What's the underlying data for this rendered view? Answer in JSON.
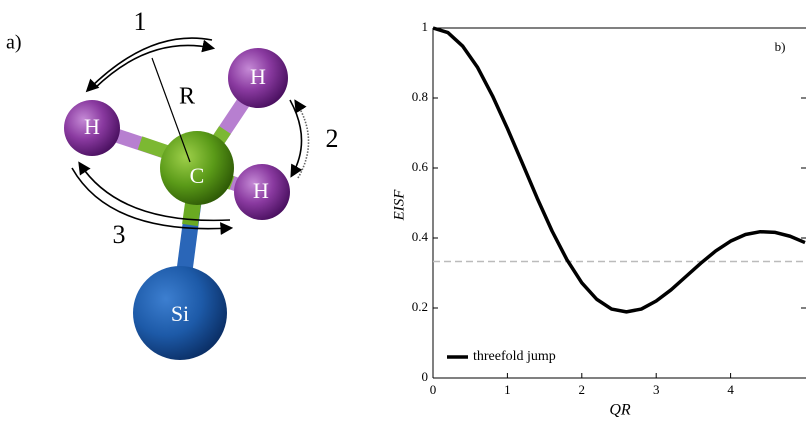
{
  "panel_a": {
    "label": "a)",
    "jumps": [
      "1",
      "2",
      "3"
    ],
    "radius_label": "R",
    "atoms": {
      "h_left": "H",
      "h_top": "H",
      "h_right": "H",
      "carbon": "C",
      "silicon": "Si"
    }
  },
  "chart_data": {
    "type": "line",
    "panel_label": "b)",
    "x_label": "QR",
    "y_label": "EISF",
    "x": [
      0,
      0.2,
      0.4,
      0.6,
      0.8,
      1.0,
      1.2,
      1.4,
      1.6,
      1.8,
      2.0,
      2.2,
      2.4,
      2.6,
      2.8,
      3.0,
      3.2,
      3.4,
      3.6,
      3.8,
      4.0,
      4.2,
      4.4,
      4.6,
      4.8,
      5.0
    ],
    "series": [
      {
        "name": "threefold jump",
        "color": "#000000",
        "values": [
          1,
          0.987,
          0.948,
          0.887,
          0.806,
          0.713,
          0.614,
          0.514,
          0.42,
          0.338,
          0.272,
          0.225,
          0.197,
          0.189,
          0.197,
          0.22,
          0.252,
          0.29,
          0.328,
          0.363,
          0.391,
          0.41,
          0.418,
          0.416,
          0.405,
          0.387
        ]
      }
    ],
    "reference_line": 0.333,
    "reference_color": "#bbbbbb",
    "xlim": [
      0,
      5
    ],
    "ylim": [
      0,
      1
    ],
    "xticks": [
      0,
      1,
      2,
      3,
      4
    ],
    "yticks": [
      0,
      0.2,
      0.4,
      0.6,
      0.8,
      1
    ],
    "legend": "lower left"
  }
}
